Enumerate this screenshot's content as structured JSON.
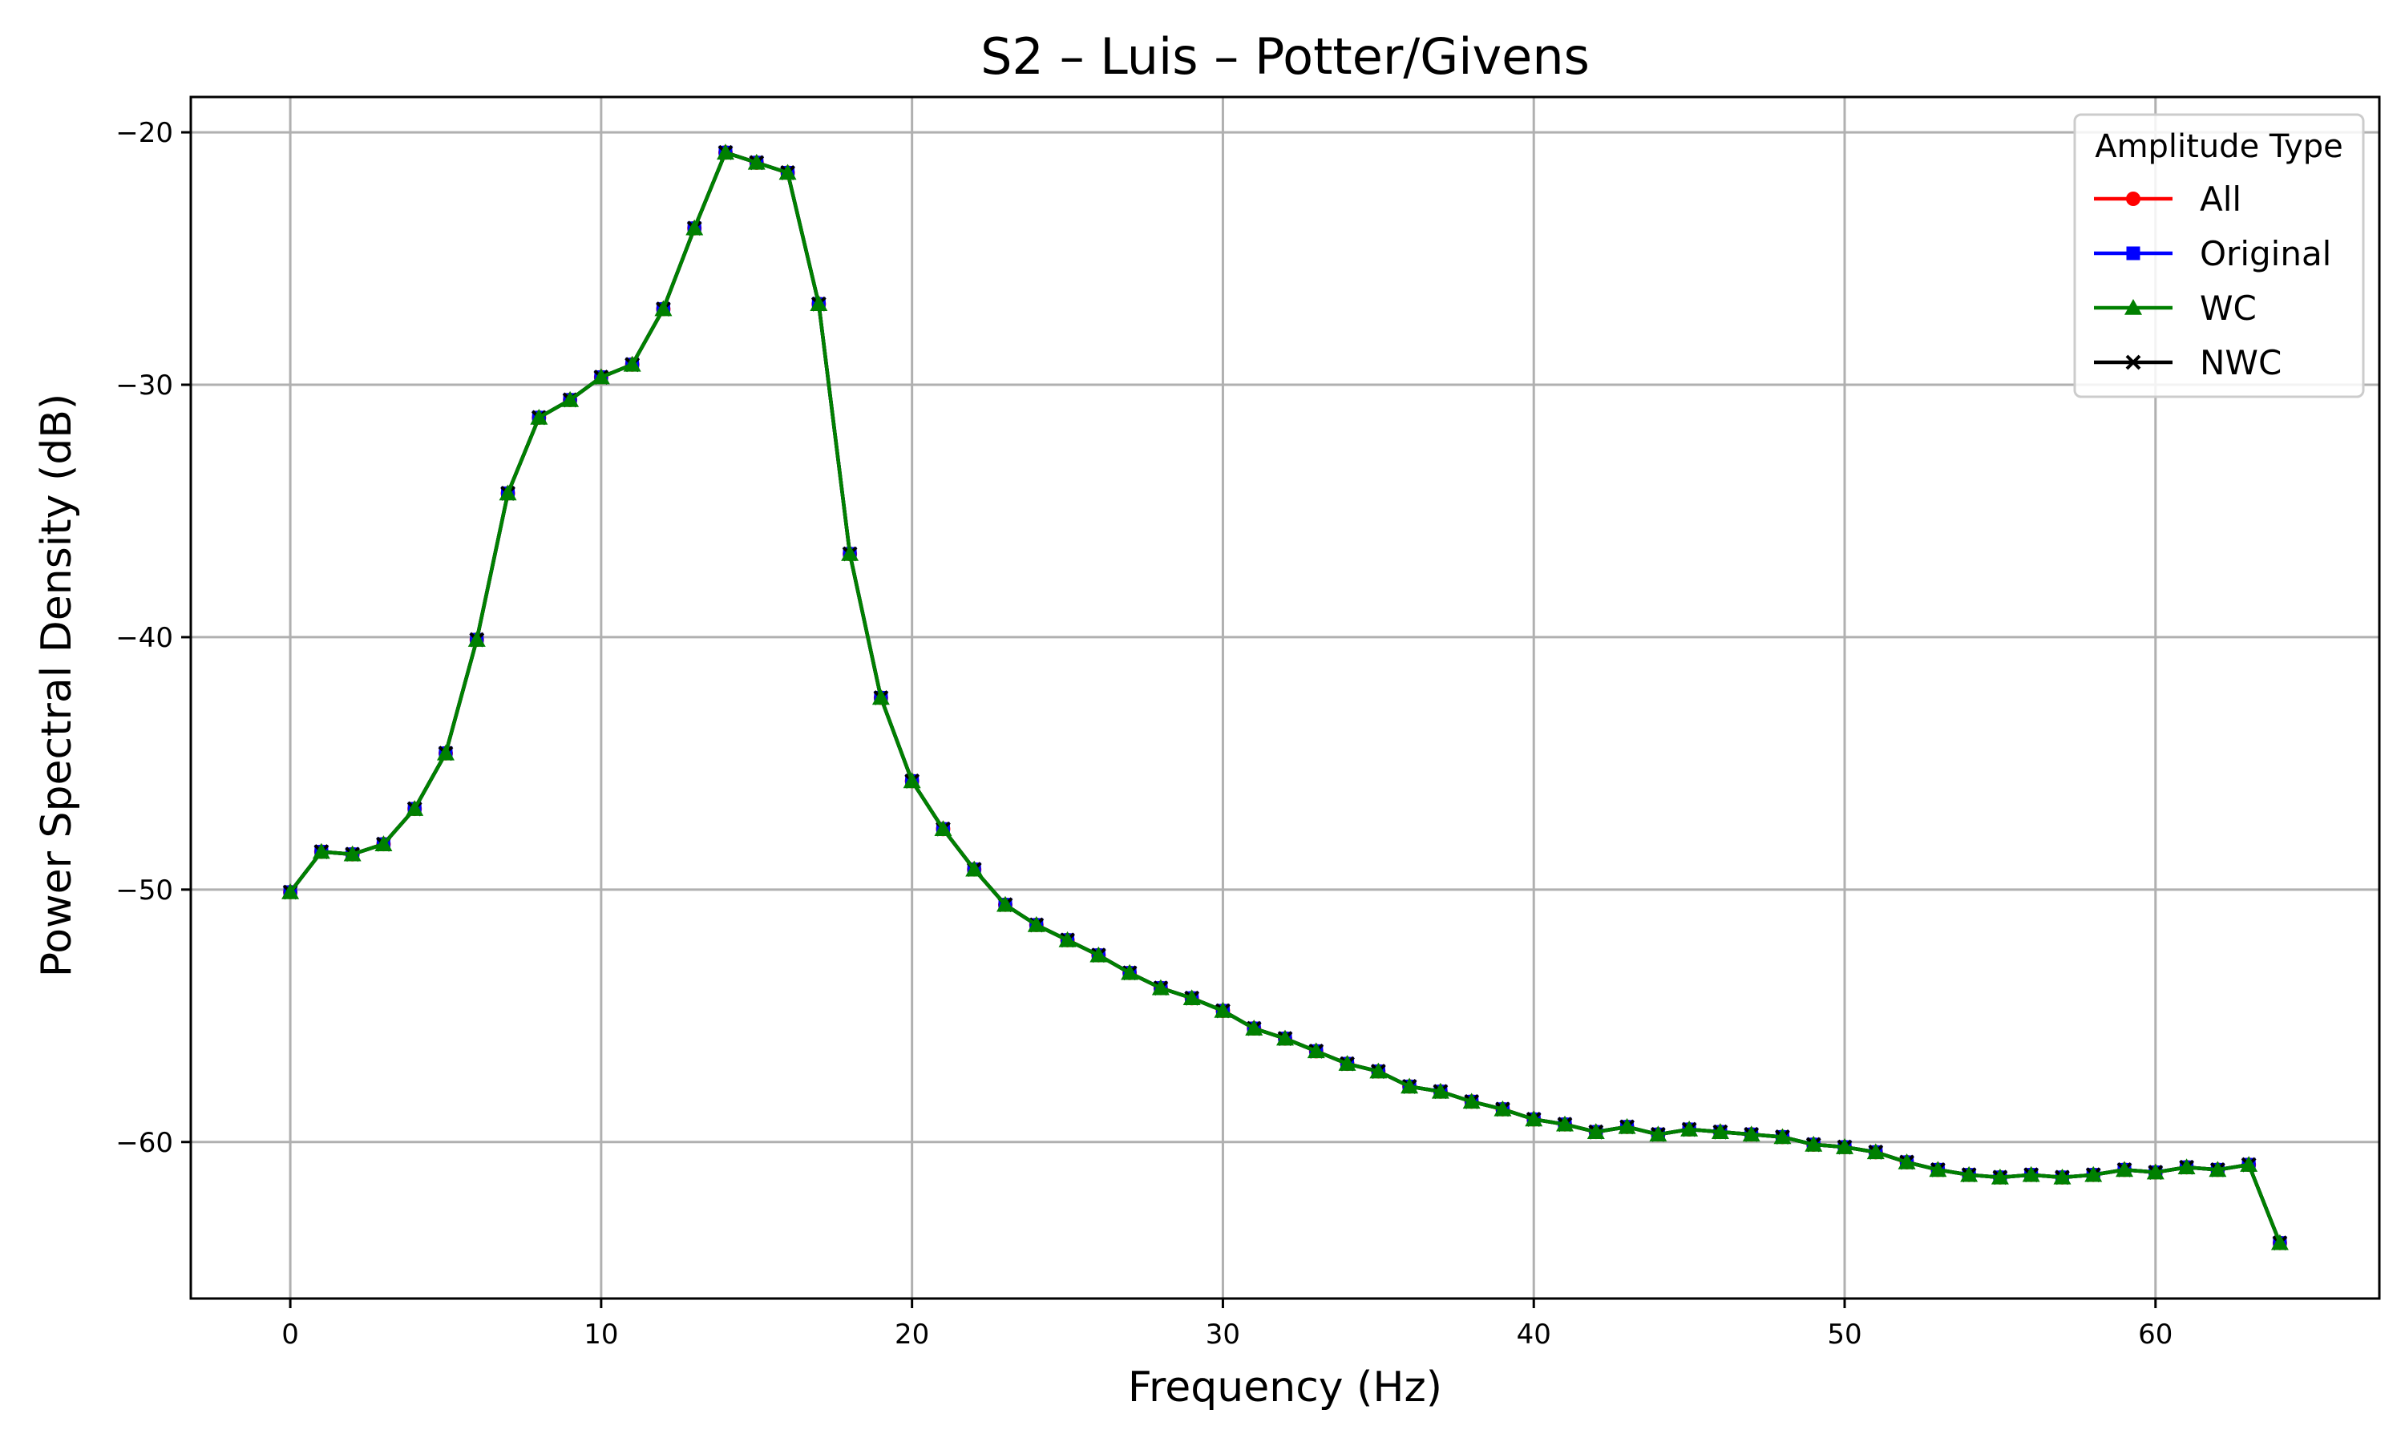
{
  "chart_data": {
    "type": "line",
    "title": "S2 – Luis – Potter/Givens",
    "xlabel": "Frequency (Hz)",
    "ylabel": "Power Spectral Density (dB)",
    "xlim": [
      -3.2,
      67.2
    ],
    "ylim": [
      -66.2,
      -18.6
    ],
    "x_ticks": [
      0,
      10,
      20,
      30,
      40,
      50,
      60
    ],
    "y_ticks": [
      -20,
      -30,
      -40,
      -50,
      -60
    ],
    "x_tick_labels": [
      "0",
      "10",
      "20",
      "30",
      "40",
      "50",
      "60"
    ],
    "y_tick_labels": [
      "−20",
      "−30",
      "−40",
      "−50",
      "−60"
    ],
    "grid": true,
    "legend": {
      "title": "Amplitude Type",
      "placement": "top-right",
      "entries": [
        {
          "label": "All",
          "color": "#ff0000",
          "marker": "circle"
        },
        {
          "label": "Original",
          "color": "#0000ff",
          "marker": "square"
        },
        {
          "label": "WC",
          "color": "#008000",
          "marker": "triangle"
        },
        {
          "label": "NWC",
          "color": "#000000",
          "marker": "x"
        }
      ]
    },
    "series": [
      {
        "name": "All",
        "color": "#ff0000",
        "marker": "circle",
        "x": [
          0,
          1,
          2,
          3,
          4,
          5,
          6,
          7,
          8,
          9,
          10,
          11,
          12,
          13,
          14,
          15,
          16,
          17,
          18,
          19,
          20,
          21,
          22,
          23,
          24,
          25,
          26,
          27,
          28,
          29,
          30,
          31,
          32,
          33,
          34,
          35,
          36,
          37,
          38,
          39,
          40,
          41,
          42,
          43,
          44,
          45,
          46,
          47,
          48,
          49,
          50,
          51,
          52,
          53,
          54,
          55,
          56,
          57,
          58,
          59,
          60,
          61,
          62,
          63,
          64
        ],
        "y": [
          -50.1,
          -48.5,
          -48.6,
          -48.2,
          -46.8,
          -44.6,
          -40.1,
          -34.3,
          -31.3,
          -30.6,
          -29.7,
          -29.2,
          -27.0,
          -23.8,
          -20.8,
          -21.2,
          -21.6,
          -26.8,
          -36.7,
          -42.4,
          -45.7,
          -47.6,
          -49.2,
          -50.6,
          -51.4,
          -52.0,
          -52.6,
          -53.3,
          -53.9,
          -54.3,
          -54.8,
          -55.5,
          -55.9,
          -56.4,
          -56.9,
          -57.2,
          -57.8,
          -58.0,
          -58.4,
          -58.7,
          -59.1,
          -59.3,
          -59.6,
          -59.4,
          -59.7,
          -59.5,
          -59.6,
          -59.7,
          -59.8,
          -60.1,
          -60.2,
          -60.4,
          -60.8,
          -61.1,
          -61.3,
          -61.4,
          -61.3,
          -61.4,
          -61.3,
          -61.1,
          -61.2,
          -61.0,
          -61.1,
          -60.9,
          -64.0
        ]
      },
      {
        "name": "Original",
        "color": "#0000ff",
        "marker": "square",
        "x": [
          0,
          1,
          2,
          3,
          4,
          5,
          6,
          7,
          8,
          9,
          10,
          11,
          12,
          13,
          14,
          15,
          16,
          17,
          18,
          19,
          20,
          21,
          22,
          23,
          24,
          25,
          26,
          27,
          28,
          29,
          30,
          31,
          32,
          33,
          34,
          35,
          36,
          37,
          38,
          39,
          40,
          41,
          42,
          43,
          44,
          45,
          46,
          47,
          48,
          49,
          50,
          51,
          52,
          53,
          54,
          55,
          56,
          57,
          58,
          59,
          60,
          61,
          62,
          63,
          64
        ],
        "y": [
          -50.1,
          -48.5,
          -48.6,
          -48.2,
          -46.8,
          -44.6,
          -40.1,
          -34.3,
          -31.3,
          -30.6,
          -29.7,
          -29.2,
          -27.0,
          -23.8,
          -20.8,
          -21.2,
          -21.6,
          -26.8,
          -36.7,
          -42.4,
          -45.7,
          -47.6,
          -49.2,
          -50.6,
          -51.4,
          -52.0,
          -52.6,
          -53.3,
          -53.9,
          -54.3,
          -54.8,
          -55.5,
          -55.9,
          -56.4,
          -56.9,
          -57.2,
          -57.8,
          -58.0,
          -58.4,
          -58.7,
          -59.1,
          -59.3,
          -59.6,
          -59.4,
          -59.7,
          -59.5,
          -59.6,
          -59.7,
          -59.8,
          -60.1,
          -60.2,
          -60.4,
          -60.8,
          -61.1,
          -61.3,
          -61.4,
          -61.3,
          -61.4,
          -61.3,
          -61.1,
          -61.2,
          -61.0,
          -61.1,
          -60.9,
          -64.0
        ]
      },
      {
        "name": "NWC",
        "color": "#000000",
        "marker": "x",
        "x": [
          0,
          1,
          2,
          3,
          4,
          5,
          6,
          7,
          8,
          9,
          10,
          11,
          12,
          13,
          14,
          15,
          16,
          17,
          18,
          19,
          20,
          21,
          22,
          23,
          24,
          25,
          26,
          27,
          28,
          29,
          30,
          31,
          32,
          33,
          34,
          35,
          36,
          37,
          38,
          39,
          40,
          41,
          42,
          43,
          44,
          45,
          46,
          47,
          48,
          49,
          50,
          51,
          52,
          53,
          54,
          55,
          56,
          57,
          58,
          59,
          60,
          61,
          62,
          63,
          64
        ],
        "y": [
          -50.1,
          -48.5,
          -48.6,
          -48.2,
          -46.8,
          -44.6,
          -40.1,
          -34.3,
          -31.3,
          -30.6,
          -29.7,
          -29.2,
          -27.0,
          -23.8,
          -20.8,
          -21.2,
          -21.6,
          -26.8,
          -36.7,
          -42.4,
          -45.7,
          -47.6,
          -49.2,
          -50.6,
          -51.4,
          -52.0,
          -52.6,
          -53.3,
          -53.9,
          -54.3,
          -54.8,
          -55.5,
          -55.9,
          -56.4,
          -56.9,
          -57.2,
          -57.8,
          -58.0,
          -58.4,
          -58.7,
          -59.1,
          -59.3,
          -59.6,
          -59.4,
          -59.7,
          -59.5,
          -59.6,
          -59.7,
          -59.8,
          -60.1,
          -60.2,
          -60.4,
          -60.8,
          -61.1,
          -61.3,
          -61.4,
          -61.3,
          -61.4,
          -61.3,
          -61.1,
          -61.2,
          -61.0,
          -61.1,
          -60.9,
          -64.0
        ]
      },
      {
        "name": "WC",
        "color": "#008000",
        "marker": "triangle",
        "x": [
          0,
          1,
          2,
          3,
          4,
          5,
          6,
          7,
          8,
          9,
          10,
          11,
          12,
          13,
          14,
          15,
          16,
          17,
          18,
          19,
          20,
          21,
          22,
          23,
          24,
          25,
          26,
          27,
          28,
          29,
          30,
          31,
          32,
          33,
          34,
          35,
          36,
          37,
          38,
          39,
          40,
          41,
          42,
          43,
          44,
          45,
          46,
          47,
          48,
          49,
          50,
          51,
          52,
          53,
          54,
          55,
          56,
          57,
          58,
          59,
          60,
          61,
          62,
          63,
          64
        ],
        "y": [
          -50.1,
          -48.5,
          -48.6,
          -48.2,
          -46.8,
          -44.6,
          -40.1,
          -34.3,
          -31.3,
          -30.6,
          -29.7,
          -29.2,
          -27.0,
          -23.8,
          -20.8,
          -21.2,
          -21.6,
          -26.8,
          -36.7,
          -42.4,
          -45.7,
          -47.6,
          -49.2,
          -50.6,
          -51.4,
          -52.0,
          -52.6,
          -53.3,
          -53.9,
          -54.3,
          -54.8,
          -55.5,
          -55.9,
          -56.4,
          -56.9,
          -57.2,
          -57.8,
          -58.0,
          -58.4,
          -58.7,
          -59.1,
          -59.3,
          -59.6,
          -59.4,
          -59.7,
          -59.5,
          -59.6,
          -59.7,
          -59.8,
          -60.1,
          -60.2,
          -60.4,
          -60.8,
          -61.1,
          -61.3,
          -61.4,
          -61.3,
          -61.4,
          -61.3,
          -61.1,
          -61.2,
          -61.0,
          -61.1,
          -60.9,
          -64.0
        ]
      }
    ]
  }
}
